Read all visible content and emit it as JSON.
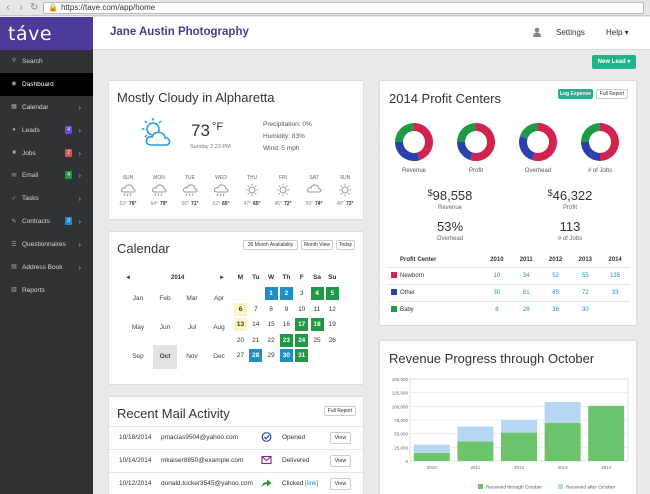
{
  "browser": {
    "url": "https://tave.com/app/home"
  },
  "sidebar": {
    "logo": "táve",
    "items": [
      {
        "label": "Search",
        "icon": "search-icon"
      },
      {
        "label": "Dashboard",
        "icon": "dashboard-icon"
      },
      {
        "label": "Calendar",
        "icon": "calendar-icon"
      },
      {
        "label": "Leads",
        "icon": "leads-icon",
        "badge": "4",
        "badge_color": "#6a4bd0"
      },
      {
        "label": "Jobs",
        "icon": "jobs-icon",
        "badge": "2",
        "badge_color": "#d9534f"
      },
      {
        "label": "Email",
        "icon": "email-icon",
        "badge": "4",
        "badge_color": "#1e9a47"
      },
      {
        "label": "Tasks",
        "icon": "tasks-icon"
      },
      {
        "label": "Contracts",
        "icon": "contracts-icon",
        "badge": "3",
        "badge_color": "#1e8fc6"
      },
      {
        "label": "Questionnaires",
        "icon": "questionnaires-icon"
      },
      {
        "label": "Address Book",
        "icon": "address-book-icon"
      },
      {
        "label": "Reports",
        "icon": "reports-icon"
      }
    ]
  },
  "topbar": {
    "brand": "Jane Austin Photography",
    "settings": "Settings",
    "help": "Help ▾",
    "new_lead": "New Lead ▾"
  },
  "weather": {
    "title": "Mostly Cloudy in Alpharetta",
    "temp": "73",
    "unit": "°F",
    "date": "Sunday 2:23 PM",
    "precip": "Precipitation: 0%",
    "humidity": "Humidity: 83%",
    "wind": "Wind: 5 mph",
    "days": [
      {
        "d": "SUN",
        "lo": "63°",
        "hi": "76°"
      },
      {
        "d": "MON",
        "lo": "64°",
        "hi": "79°"
      },
      {
        "d": "TUE",
        "lo": "66°",
        "hi": "71°"
      },
      {
        "d": "WED",
        "lo": "52°",
        "hi": "65°"
      },
      {
        "d": "THU",
        "lo": "47°",
        "hi": "65°"
      },
      {
        "d": "FRI",
        "lo": "45°",
        "hi": "72°"
      },
      {
        "d": "SAT",
        "lo": "50°",
        "hi": "74°"
      },
      {
        "d": "SUN",
        "lo": "48°",
        "hi": "73°"
      }
    ]
  },
  "calendar": {
    "title": "Calendar",
    "btn1": "36 Month Availability",
    "btn2": "Month View",
    "btn3": "Today",
    "year": "2014",
    "prev": "◄",
    "next": "►",
    "months": [
      "Jan",
      "Feb",
      "Mar",
      "Apr",
      "May",
      "Jun",
      "Jul",
      "Aug",
      "Sep",
      "Oct",
      "Nov",
      "Dec"
    ],
    "dow": [
      "M",
      "Tu",
      "W",
      "Th",
      "F",
      "Sa",
      "Su"
    ]
  },
  "mail": {
    "title": "Recent Mail Activity",
    "btn": "Full Report",
    "rows": [
      {
        "date": "10/18/2014",
        "email": "pmacias9504@yahoo.com",
        "status": "Opened",
        "action": "View"
      },
      {
        "date": "10/14/2014",
        "email": "mkaiser8850@example.com",
        "status": "Delivered",
        "action": "View"
      },
      {
        "date": "10/12/2014",
        "email": "donald.tucker3545@yahoo.com",
        "status": "Clicked",
        "link": "[link]",
        "action": "View"
      }
    ]
  },
  "profit": {
    "title": "2014 Profit Centers",
    "log": "Log Expense",
    "full": "Full Report",
    "donut_labels": [
      "Revenue",
      "Profit",
      "Overhead",
      "# of Jobs"
    ],
    "revenue": "98,558",
    "revenue_lbl": "Revenue",
    "profit_v": "46,322",
    "profit_lbl": "Profit",
    "overhead": "53%",
    "overhead_lbl": "Overhead",
    "jobs": "113",
    "jobs_lbl": "# of Jobs",
    "cur": "$",
    "table": {
      "headers": [
        "Profit Center",
        "2010",
        "2011",
        "2012",
        "2013",
        "2014"
      ],
      "rows": [
        {
          "name": "Newborn",
          "color": "#d0234f",
          "vals": [
            "10",
            "34",
            "52",
            "55",
            "135"
          ]
        },
        {
          "name": "Other",
          "color": "#2b3fae",
          "vals": [
            "30",
            "61",
            "85",
            "72",
            "33"
          ]
        },
        {
          "name": "Baby",
          "color": "#1e9a47",
          "vals": [
            "8",
            "28",
            "36",
            "30",
            ""
          ]
        }
      ]
    }
  },
  "revenue": {
    "title": "Revenue Progress through October",
    "legend1": "Received through October",
    "legend2": "Received after October",
    "chart_data": {
      "type": "bar",
      "categories": [
        "2010",
        "2011",
        "2012",
        "2013",
        "2014"
      ],
      "ylim": [
        0,
        150000
      ],
      "yticks": [
        "0",
        "25,000",
        "50,000",
        "75,000",
        "100,000",
        "125,000",
        "150,000"
      ],
      "series": [
        {
          "name": "Received through October",
          "values": [
            15000,
            36000,
            52000,
            70000,
            101000
          ],
          "color": "#6cc56c"
        },
        {
          "name": "Received after October",
          "values": [
            15000,
            27000,
            23000,
            38000,
            0
          ],
          "color": "#b6d7f4"
        }
      ]
    }
  }
}
